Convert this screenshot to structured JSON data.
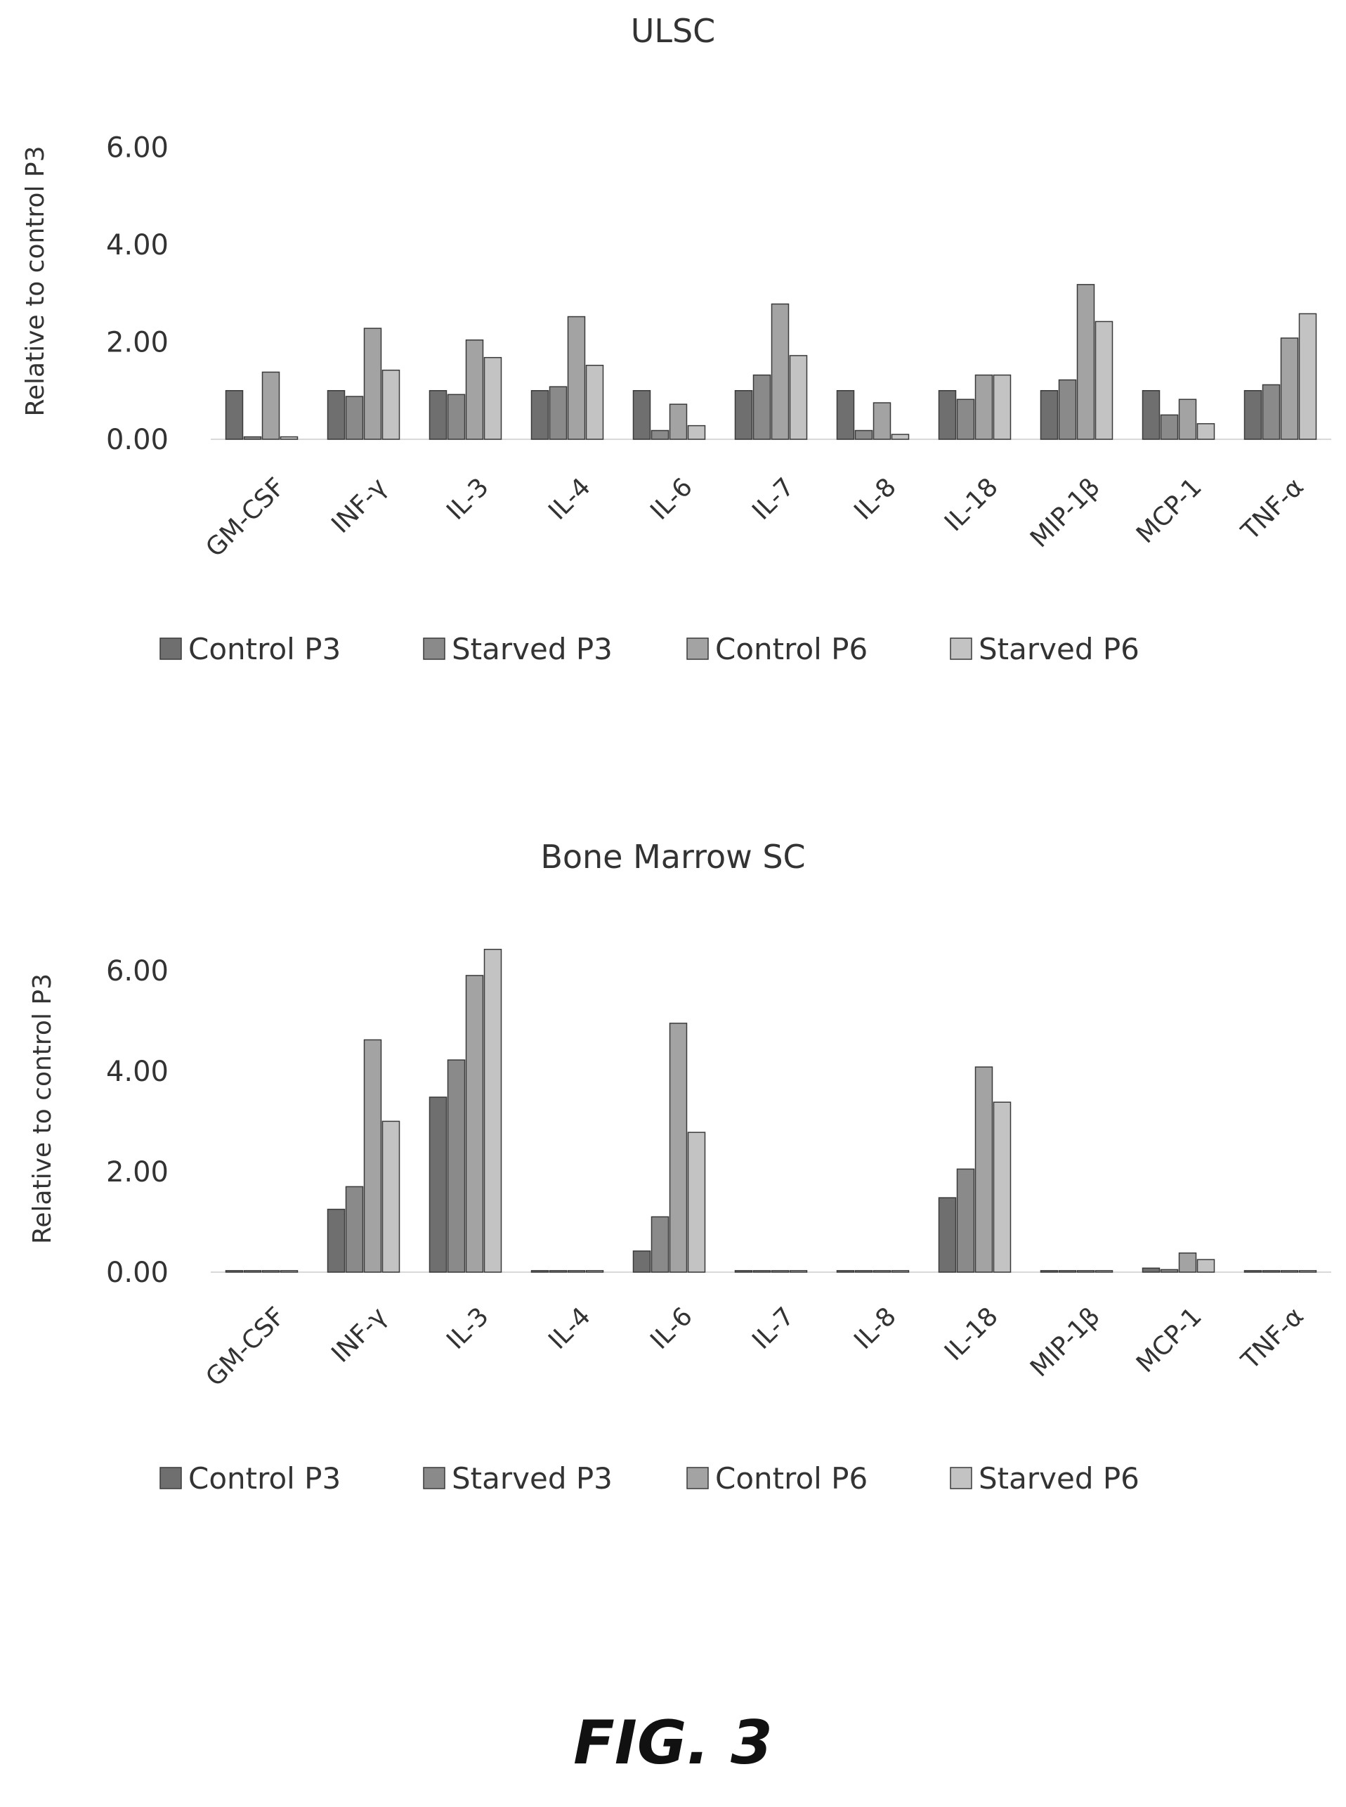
{
  "chart_data": [
    {
      "type": "bar",
      "title": "ULSC",
      "ylabel": "Relative to control P3",
      "ylim": [
        0,
        6.5
      ],
      "yticks": [
        "0.00",
        "2.00",
        "4.00",
        "6.00"
      ],
      "categories": [
        "GM-CSF",
        "INF-γ",
        "IL-3",
        "IL-4",
        "IL-6",
        "IL-7",
        "IL-8",
        "IL-18",
        "MIP-1β",
        "MCP-1",
        "TNF-α"
      ],
      "series": [
        {
          "name": "Control P3",
          "color": "#6f6f6f",
          "values": [
            1.0,
            1.0,
            1.0,
            1.0,
            1.0,
            1.0,
            1.0,
            1.0,
            1.0,
            1.0,
            1.0
          ]
        },
        {
          "name": "Starved P3",
          "color": "#8a8a8a",
          "values": [
            0.05,
            0.88,
            0.92,
            1.08,
            0.18,
            1.32,
            0.18,
            0.82,
            1.22,
            0.5,
            1.12
          ]
        },
        {
          "name": "Control P6",
          "color": "#a3a3a3",
          "values": [
            1.38,
            2.28,
            2.04,
            2.52,
            0.72,
            2.78,
            0.75,
            1.32,
            3.18,
            0.82,
            2.08
          ]
        },
        {
          "name": "Starved P6",
          "color": "#c3c3c3",
          "values": [
            0.05,
            1.42,
            1.68,
            1.52,
            0.28,
            1.72,
            0.1,
            1.32,
            2.42,
            0.32,
            2.58
          ]
        }
      ],
      "legend_position": "bottom"
    },
    {
      "type": "bar",
      "title": "Bone Marrow SC",
      "ylabel": "Relative  to control P3",
      "ylim": [
        0,
        6.5
      ],
      "yticks": [
        "0.00",
        "2.00",
        "4.00",
        "6.00"
      ],
      "categories": [
        "GM-CSF",
        "INF-γ",
        "IL-3",
        "IL-4",
        "IL-6",
        "IL-7",
        "IL-8",
        "IL-18",
        "MIP-1β",
        "MCP-1",
        "TNF-α"
      ],
      "series": [
        {
          "name": "Control P3",
          "color": "#6f6f6f",
          "values": [
            0.03,
            1.25,
            3.48,
            0.03,
            0.42,
            0.03,
            0.03,
            1.48,
            0.03,
            0.08,
            0.03
          ]
        },
        {
          "name": "Starved P3",
          "color": "#8a8a8a",
          "values": [
            0.03,
            1.7,
            4.22,
            0.03,
            1.1,
            0.03,
            0.03,
            2.05,
            0.03,
            0.05,
            0.03
          ]
        },
        {
          "name": "Control P6",
          "color": "#a3a3a3",
          "values": [
            0.03,
            4.62,
            5.9,
            0.03,
            4.95,
            0.03,
            0.03,
            4.08,
            0.03,
            0.38,
            0.03
          ]
        },
        {
          "name": "Starved P6",
          "color": "#c3c3c3",
          "values": [
            0.03,
            3.0,
            6.42,
            0.03,
            2.78,
            0.03,
            0.03,
            3.38,
            0.03,
            0.25,
            0.03
          ]
        }
      ],
      "legend_position": "bottom"
    }
  ],
  "figure": {
    "caption": "FIG. 3"
  }
}
